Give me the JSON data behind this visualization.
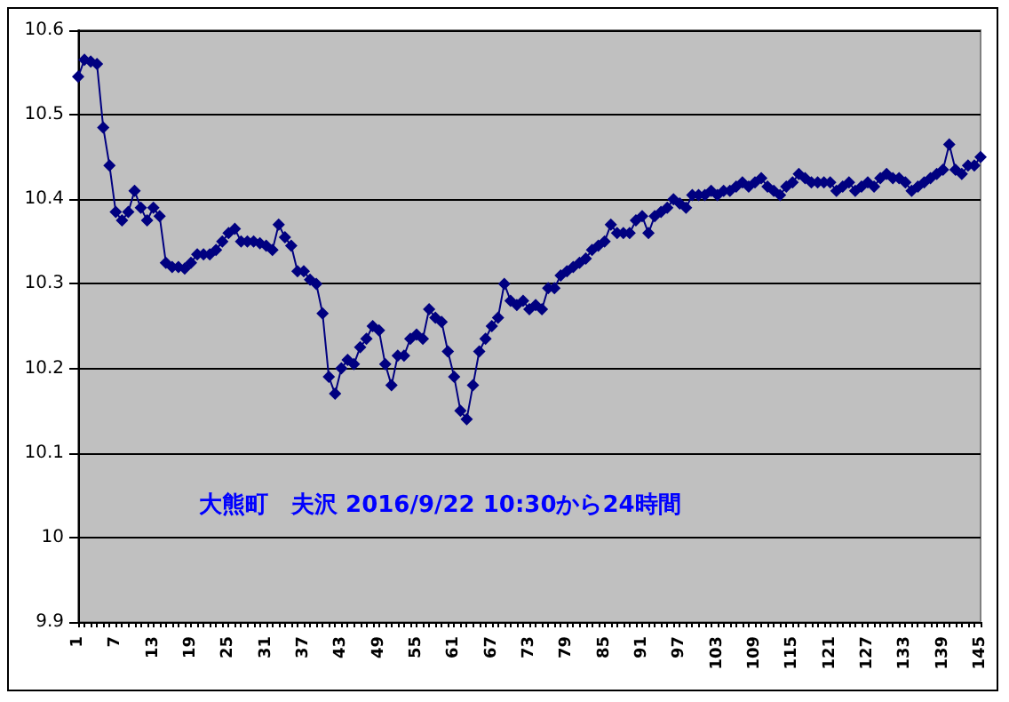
{
  "chart_data": {
    "type": "line",
    "categories": [
      "1",
      null,
      null,
      null,
      null,
      null,
      "7",
      null,
      null,
      null,
      null,
      null,
      "13",
      null,
      null,
      null,
      null,
      null,
      "19",
      null,
      null,
      null,
      null,
      null,
      "25",
      null,
      null,
      null,
      null,
      null,
      "31",
      null,
      null,
      null,
      null,
      null,
      "37",
      null,
      null,
      null,
      null,
      null,
      "43",
      null,
      null,
      null,
      null,
      null,
      "49",
      null,
      null,
      null,
      null,
      null,
      "55",
      null,
      null,
      null,
      null,
      null,
      "61",
      null,
      null,
      null,
      null,
      null,
      "67",
      null,
      null,
      null,
      null,
      null,
      "73",
      null,
      null,
      null,
      null,
      null,
      "79",
      null,
      null,
      null,
      null,
      null,
      "85",
      null,
      null,
      null,
      null,
      null,
      "91",
      null,
      null,
      null,
      null,
      null,
      "97",
      null,
      null,
      null,
      null,
      null,
      "103",
      null,
      null,
      null,
      null,
      null,
      "109",
      null,
      null,
      null,
      null,
      null,
      "115",
      null,
      null,
      null,
      null,
      null,
      "121",
      null,
      null,
      null,
      null,
      null,
      "127",
      null,
      null,
      null,
      null,
      null,
      "133",
      null,
      null,
      null,
      null,
      null,
      "139",
      null,
      null,
      null,
      null,
      null,
      "145"
    ],
    "series": [
      {
        "color": "#000080",
        "values": [
          10.545,
          10.565,
          10.563,
          10.56,
          10.485,
          10.44,
          10.385,
          10.375,
          10.385,
          10.41,
          10.39,
          10.375,
          10.39,
          10.38,
          10.325,
          10.32,
          10.32,
          10.318,
          10.325,
          10.335,
          10.335,
          10.335,
          10.34,
          10.35,
          10.36,
          10.365,
          10.35,
          10.35,
          10.35,
          10.348,
          10.345,
          10.34,
          10.37,
          10.355,
          10.345,
          10.315,
          10.315,
          10.305,
          10.3,
          10.265,
          10.19,
          10.17,
          10.2,
          10.21,
          10.205,
          10.225,
          10.235,
          10.25,
          10.245,
          10.205,
          10.18,
          10.215,
          10.215,
          10.235,
          10.24,
          10.235,
          10.27,
          10.26,
          10.255,
          10.22,
          10.19,
          10.15,
          10.14,
          10.18,
          10.22,
          10.235,
          10.25,
          10.26,
          10.3,
          10.28,
          10.275,
          10.28,
          10.27,
          10.275,
          10.27,
          10.295,
          10.295,
          10.31,
          10.315,
          10.32,
          10.325,
          10.33,
          10.34,
          10.345,
          10.35,
          10.37,
          10.36,
          10.36,
          10.36,
          10.375,
          10.38,
          10.36,
          10.38,
          10.385,
          10.39,
          10.4,
          10.395,
          10.39,
          10.405,
          10.405,
          10.405,
          10.41,
          10.405,
          10.41,
          10.41,
          10.415,
          10.42,
          10.415,
          10.42,
          10.425,
          10.415,
          10.41,
          10.405,
          10.415,
          10.42,
          10.43,
          10.425,
          10.42,
          10.42,
          10.42,
          10.42,
          10.41,
          10.415,
          10.42,
          10.41,
          10.415,
          10.42,
          10.415,
          10.425,
          10.43,
          10.425,
          10.425,
          10.42,
          10.41,
          10.415,
          10.42,
          10.425,
          10.43,
          10.435,
          10.465,
          10.435,
          10.43,
          10.44,
          10.44,
          10.45
        ]
      }
    ],
    "ylim": [
      9.9,
      10.6
    ],
    "yticks": [
      9.9,
      10,
      10.1,
      10.2,
      10.3,
      10.4,
      10.5,
      10.6
    ],
    "grid": "y",
    "marker": "diamond",
    "line_style": "solid",
    "annotations": [
      "大熊町　夫沢 2016/9/22 10:30から24時間"
    ]
  }
}
